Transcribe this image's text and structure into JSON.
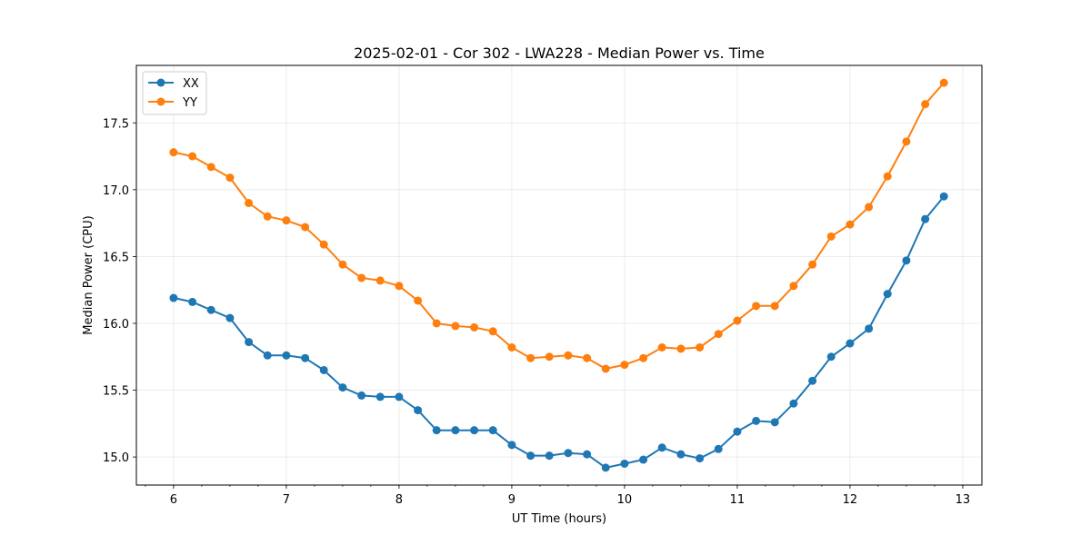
{
  "chart_data": {
    "type": "line",
    "title": "2025-02-01 - Cor 302 - LWA228 - Median Power vs. Time",
    "xlabel": "UT Time (hours)",
    "ylabel": "Median Power (CPU)",
    "xlim": [
      5.67,
      13.17
    ],
    "ylim": [
      14.79,
      17.93
    ],
    "xticks": [
      6,
      7,
      8,
      9,
      10,
      11,
      12,
      13
    ],
    "xtick_labels": [
      "6",
      "7",
      "8",
      "9",
      "10",
      "11",
      "12",
      "13"
    ],
    "xminor_step": 0.25,
    "yticks": [
      15.0,
      15.5,
      16.0,
      16.5,
      17.0,
      17.5
    ],
    "ytick_labels": [
      "15.0",
      "15.5",
      "16.0",
      "16.5",
      "17.0",
      "17.5"
    ],
    "grid": true,
    "legend_position": "top-left",
    "x": [
      6.0,
      6.167,
      6.333,
      6.5,
      6.667,
      6.833,
      7.0,
      7.167,
      7.333,
      7.5,
      7.667,
      7.833,
      8.0,
      8.167,
      8.333,
      8.5,
      8.667,
      8.833,
      9.0,
      9.167,
      9.333,
      9.5,
      9.667,
      9.833,
      10.0,
      10.167,
      10.333,
      10.5,
      10.667,
      10.833,
      11.0,
      11.167,
      11.333,
      11.5,
      11.667,
      11.833,
      12.0,
      12.167,
      12.333,
      12.5,
      12.667,
      12.833
    ],
    "series": [
      {
        "name": "XX",
        "color": "#1f77b4",
        "values": [
          16.19,
          16.16,
          16.1,
          16.04,
          15.86,
          15.76,
          15.76,
          15.74,
          15.65,
          15.52,
          15.46,
          15.45,
          15.45,
          15.35,
          15.2,
          15.2,
          15.2,
          15.2,
          15.09,
          15.01,
          15.01,
          15.03,
          15.02,
          14.92,
          14.95,
          14.98,
          15.07,
          15.02,
          14.99,
          15.06,
          15.19,
          15.27,
          15.26,
          15.4,
          15.57,
          15.75,
          15.85,
          15.96,
          16.22,
          16.47,
          16.78,
          16.95
        ]
      },
      {
        "name": "YY",
        "color": "#ff7f0e",
        "values": [
          17.28,
          17.25,
          17.17,
          17.09,
          16.9,
          16.8,
          16.77,
          16.72,
          16.59,
          16.44,
          16.34,
          16.32,
          16.28,
          16.17,
          16.0,
          15.98,
          15.97,
          15.94,
          15.82,
          15.74,
          15.75,
          15.76,
          15.74,
          15.66,
          15.69,
          15.74,
          15.82,
          15.81,
          15.82,
          15.92,
          16.02,
          16.13,
          16.13,
          16.28,
          16.44,
          16.65,
          16.74,
          16.87,
          17.1,
          17.36,
          17.64,
          17.8
        ]
      }
    ]
  }
}
